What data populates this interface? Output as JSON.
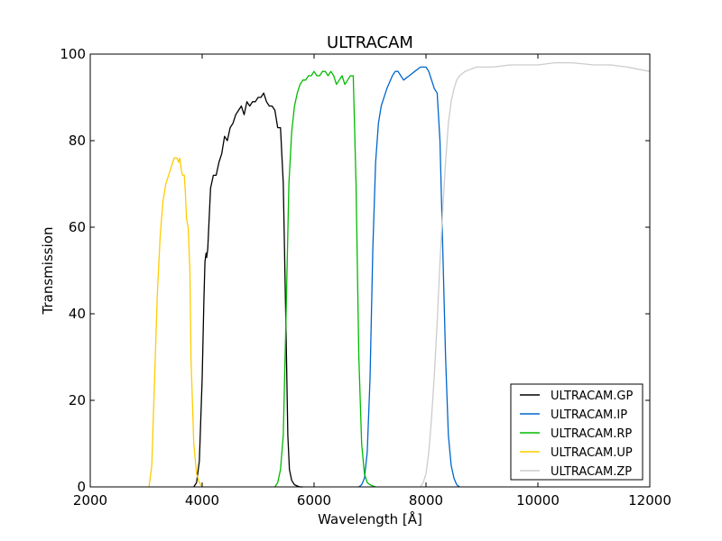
{
  "chart_data": {
    "type": "line",
    "title": "ULTRACAM",
    "xlabel": "Wavelength [Å]",
    "ylabel": "Transmission",
    "xlim": [
      2000,
      12000
    ],
    "ylim": [
      0,
      100
    ],
    "xticks": [
      2000,
      4000,
      6000,
      8000,
      10000,
      12000
    ],
    "yticks": [
      0,
      20,
      40,
      60,
      80,
      100
    ],
    "grid": false,
    "legend_position": "lower-right",
    "series": [
      {
        "name": "ULTRACAM.GP",
        "color": "#000000",
        "x": [
          3850,
          3900,
          3950,
          4000,
          4030,
          4050,
          4070,
          4080,
          4100,
          4150,
          4200,
          4250,
          4300,
          4350,
          4400,
          4450,
          4500,
          4550,
          4600,
          4650,
          4700,
          4750,
          4800,
          4850,
          4900,
          4950,
          5000,
          5050,
          5100,
          5150,
          5200,
          5250,
          5300,
          5350,
          5400,
          5450,
          5500,
          5530,
          5560,
          5600,
          5650,
          5700,
          5750,
          5800
        ],
        "y": [
          0,
          1,
          6,
          25,
          43,
          52,
          54,
          53,
          55,
          69,
          72,
          72,
          75,
          77,
          81,
          80,
          83,
          84,
          86,
          87,
          88,
          86,
          89,
          88,
          89,
          89,
          90,
          90,
          91,
          89,
          88,
          88,
          87,
          83,
          83,
          70,
          35,
          12,
          4,
          1.5,
          0.5,
          0.2,
          0,
          0
        ]
      },
      {
        "name": "ULTRACAM.IP",
        "color": "#0066cc",
        "x": [
          6800,
          6850,
          6900,
          6950,
          7000,
          7050,
          7100,
          7150,
          7200,
          7300,
          7400,
          7450,
          7500,
          7550,
          7600,
          7700,
          7800,
          7900,
          8000,
          8050,
          8100,
          8150,
          8200,
          8250,
          8300,
          8350,
          8400,
          8450,
          8500,
          8550,
          8600
        ],
        "y": [
          0,
          0.5,
          2,
          8,
          25,
          55,
          75,
          84,
          88,
          92,
          95,
          96,
          96,
          95,
          94,
          95,
          96,
          97,
          97,
          96,
          94,
          92,
          91,
          80,
          55,
          30,
          12,
          5,
          2,
          0.5,
          0
        ]
      },
      {
        "name": "ULTRACAM.RP",
        "color": "#00bb00",
        "x": [
          5300,
          5350,
          5400,
          5450,
          5500,
          5550,
          5600,
          5650,
          5700,
          5750,
          5800,
          5850,
          5900,
          5950,
          6000,
          6050,
          6100,
          6150,
          6200,
          6250,
          6300,
          6350,
          6400,
          6450,
          6500,
          6550,
          6600,
          6650,
          6700,
          6750,
          6800,
          6850,
          6900,
          6950,
          7000,
          7050,
          7100
        ],
        "y": [
          0,
          1,
          4,
          12,
          40,
          70,
          82,
          88,
          91,
          93,
          94,
          94,
          95,
          95,
          96,
          95,
          95,
          96,
          96,
          95,
          96,
          95,
          93,
          94,
          95,
          93,
          94,
          95,
          95,
          70,
          30,
          10,
          3,
          1,
          0.5,
          0.2,
          0
        ]
      },
      {
        "name": "ULTRACAM.UP",
        "color": "#ffcc00",
        "x": [
          3050,
          3100,
          3150,
          3200,
          3250,
          3300,
          3350,
          3400,
          3450,
          3500,
          3550,
          3580,
          3600,
          3630,
          3650,
          3680,
          3700,
          3720,
          3750,
          3780,
          3800,
          3850,
          3900,
          3950,
          4000
        ],
        "y": [
          0,
          5,
          25,
          45,
          58,
          66,
          70,
          72,
          74,
          76,
          76,
          75,
          76,
          73,
          72,
          72,
          68,
          62,
          60,
          50,
          30,
          10,
          3,
          1,
          0
        ]
      },
      {
        "name": "ULTRACAM.ZP",
        "color": "#cccccc",
        "x": [
          7900,
          7950,
          8000,
          8050,
          8100,
          8150,
          8200,
          8250,
          8300,
          8350,
          8400,
          8450,
          8500,
          8550,
          8600,
          8700,
          8800,
          8900,
          9000,
          9200,
          9500,
          9800,
          10000,
          10300,
          10600,
          11000,
          11300,
          11600,
          11800,
          12000
        ],
        "y": [
          0,
          1,
          3,
          8,
          16,
          26,
          38,
          52,
          64,
          75,
          84,
          89,
          92,
          94,
          95,
          96,
          96.5,
          97,
          97,
          97,
          97.5,
          97.5,
          97.5,
          98,
          98,
          97.5,
          97.5,
          97,
          96.5,
          96
        ]
      }
    ]
  }
}
